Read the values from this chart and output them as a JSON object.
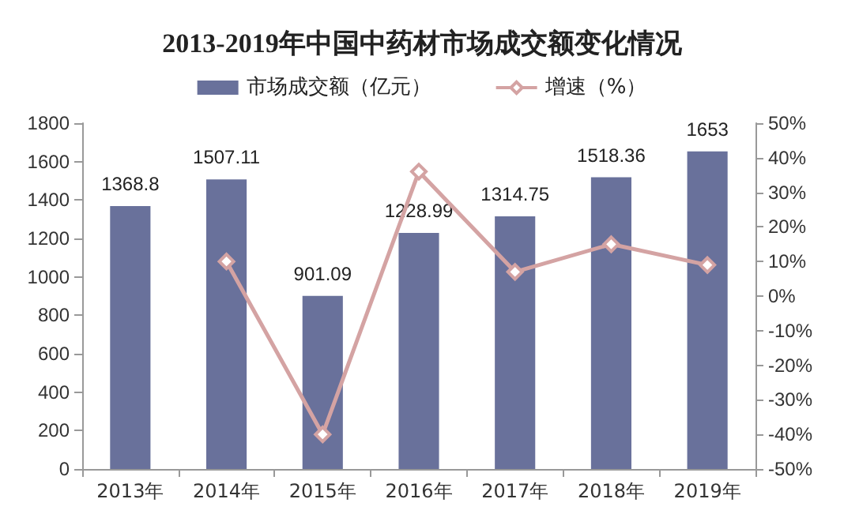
{
  "chart_data": {
    "type": "bar",
    "title": "2013-2019年中国中药材市场成交额变化情况",
    "categories": [
      "2013年",
      "2014年",
      "2015年",
      "2016年",
      "2017年",
      "2018年",
      "2019年"
    ],
    "series": [
      {
        "name": "市场成交额（亿元）",
        "color": "#69719b",
        "values": [
          1368.8,
          1507.11,
          901.09,
          1228.99,
          1314.75,
          1518.36,
          1653
        ],
        "value_labels": [
          "1368.8",
          "1507.11",
          "901.09",
          "1228.99",
          "1314.75",
          "1518.36",
          "1653"
        ]
      },
      {
        "name": "增速（%）",
        "type": "line",
        "axis": "y2",
        "color": "#d4a3a3",
        "marker": "diamond",
        "values": [
          null,
          10,
          -40,
          36,
          7,
          15,
          9
        ]
      }
    ],
    "ylim": [
      0,
      1800
    ],
    "yticks": [
      0,
      200,
      400,
      600,
      800,
      1000,
      1200,
      1400,
      1600,
      1800
    ],
    "y2lim": [
      -50,
      50
    ],
    "y2ticks": [
      {
        "value": -50,
        "label": "-50%"
      },
      {
        "value": -40,
        "label": "-40%"
      },
      {
        "value": -30,
        "label": "-30%"
      },
      {
        "value": -20,
        "label": "-20%"
      },
      {
        "value": -10,
        "label": "-10%"
      },
      {
        "value": 0,
        "label": "0%"
      },
      {
        "value": 10,
        "label": "10%"
      },
      {
        "value": 20,
        "label": "20%"
      },
      {
        "value": 30,
        "label": "30%"
      },
      {
        "value": 40,
        "label": "40%"
      },
      {
        "value": 50,
        "label": "50%"
      }
    ],
    "legend": "top",
    "grid": false
  }
}
